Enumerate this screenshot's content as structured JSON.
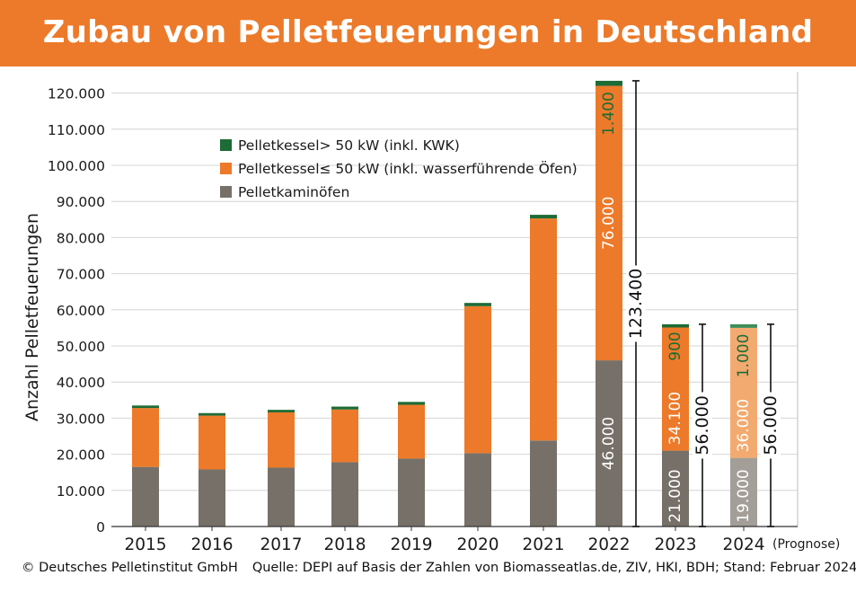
{
  "header": {
    "title": "Zubau von Pelletfeuerungen in Deutschland"
  },
  "footer": {
    "copyright": "© Deutsches Pelletinstitut GmbH",
    "source": "Quelle: DEPI auf Basis der Zahlen von Biomasseatlas.de, ZIV, HKI, BDH; Stand: Februar 2024"
  },
  "chart_data": {
    "type": "bar",
    "stacked": true,
    "title": "Zubau von Pelletfeuerungen in Deutschland",
    "ylabel": "Anzahl Pelletfeuerungen",
    "xlabel": "",
    "ylim": [
      0,
      125000
    ],
    "yticks": [
      0,
      10000,
      20000,
      30000,
      40000,
      50000,
      60000,
      70000,
      80000,
      90000,
      100000,
      110000,
      120000
    ],
    "ytick_labels": [
      "0",
      "10.000",
      "20.000",
      "30.000",
      "40.000",
      "50.000",
      "60.000",
      "70.000",
      "80.000",
      "90.000",
      "100.000",
      "110.000",
      "120.000"
    ],
    "grid": true,
    "legend_position": "top-center",
    "categories": [
      "2015",
      "2016",
      "2017",
      "2018",
      "2019",
      "2020",
      "2021",
      "2022",
      "2023",
      "2024"
    ],
    "prognose_note": "(Prognose)",
    "series": [
      {
        "name": "Pelletkaminöfen",
        "color": "#767069",
        "light_color": "#a39e98",
        "values": [
          16500,
          15800,
          16300,
          17800,
          18800,
          20300,
          23800,
          46000,
          21000,
          19000
        ]
      },
      {
        "name": "Pelletkessel≤ 50 kW (inkl. wasserführende Öfen)",
        "color": "#ec7a2a",
        "light_color": "#f3aa70",
        "values": [
          16300,
          14900,
          15300,
          14600,
          14900,
          40700,
          61500,
          76000,
          34100,
          36000
        ]
      },
      {
        "name": "Pelletkessel> 50 kW (inkl. KWK)",
        "color": "#1d6b35",
        "light_color": "#3e8c5a",
        "values": [
          700,
          700,
          700,
          800,
          800,
          900,
          1000,
          1400,
          900,
          1000
        ]
      }
    ],
    "segment_labels": [
      {
        "category": "2022",
        "series": 0,
        "text": "46.000"
      },
      {
        "category": "2022",
        "series": 1,
        "text": "76.000"
      },
      {
        "category": "2022",
        "series": 2,
        "text": "1.400"
      },
      {
        "category": "2023",
        "series": 0,
        "text": "21.000"
      },
      {
        "category": "2023",
        "series": 1,
        "text": "34.100"
      },
      {
        "category": "2023",
        "series": 2,
        "text": "900"
      },
      {
        "category": "2024",
        "series": 0,
        "text": "19.000"
      },
      {
        "category": "2024",
        "series": 1,
        "text": "36.000"
      },
      {
        "category": "2024",
        "series": 2,
        "text": "1.000"
      }
    ],
    "totals": [
      {
        "category": "2022",
        "value": 123400,
        "text": "123.400"
      },
      {
        "category": "2023",
        "value": 56000,
        "text": "56.000"
      },
      {
        "category": "2024",
        "value": 56000,
        "text": "56.000"
      }
    ]
  }
}
